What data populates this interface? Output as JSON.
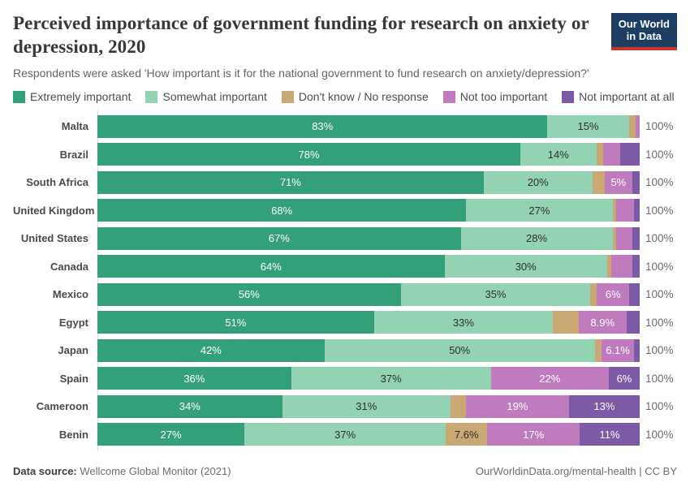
{
  "header": {
    "title": "Perceived importance of government funding for research on anxiety or depression, 2020",
    "subtitle": "Respondents were asked 'How important is it for the national government to fund research on anxiety/depression?'",
    "logo": {
      "line1": "Our World",
      "line2": "in Data",
      "bg": "#1d3d63",
      "accent": "#c7342a"
    }
  },
  "chart_data": {
    "type": "bar",
    "orientation": "horizontal",
    "stacked": true,
    "unit": "%",
    "axis_max_label": "100%",
    "categories": [
      {
        "label": "Extremely important",
        "color": "#34a07a",
        "label_color": "#ffffff"
      },
      {
        "label": "Somewhat important",
        "color": "#93d3b4",
        "label_color": "#2d2d2d"
      },
      {
        "label": "Don't know / No response",
        "color": "#c9a873",
        "label_color": "#2d2d2d"
      },
      {
        "label": "Not too important",
        "color": "#bf7bbd",
        "label_color": "#ffffff"
      },
      {
        "label": "Not important at all",
        "color": "#7d5aa6",
        "label_color": "#ffffff"
      }
    ],
    "rows": [
      {
        "country": "Malta",
        "values": [
          83,
          15,
          1.2,
          0.8,
          0
        ],
        "labels": [
          "83%",
          "15%",
          "",
          "",
          ""
        ],
        "total": "100%"
      },
      {
        "country": "Brazil",
        "values": [
          78,
          14,
          1.3,
          3.1,
          3.6
        ],
        "labels": [
          "78%",
          "14%",
          "",
          "",
          ""
        ],
        "total": "100%"
      },
      {
        "country": "South Africa",
        "values": [
          71,
          20,
          2.3,
          5,
          1.4
        ],
        "labels": [
          "71%",
          "20%",
          "",
          "5%",
          ""
        ],
        "total": "100%"
      },
      {
        "country": "United Kingdom",
        "values": [
          68,
          27,
          0.7,
          3.2,
          1.1
        ],
        "labels": [
          "68%",
          "27%",
          "",
          "",
          ""
        ],
        "total": "100%"
      },
      {
        "country": "United States",
        "values": [
          67,
          28,
          0.7,
          3,
          1.3
        ],
        "labels": [
          "67%",
          "28%",
          "",
          "",
          ""
        ],
        "total": "100%"
      },
      {
        "country": "Canada",
        "values": [
          64,
          30,
          0.8,
          3.9,
          1.3
        ],
        "labels": [
          "64%",
          "30%",
          "",
          "",
          ""
        ],
        "total": "100%"
      },
      {
        "country": "Mexico",
        "values": [
          56,
          35,
          1.2,
          6,
          1.9
        ],
        "labels": [
          "56%",
          "35%",
          "",
          "6%",
          ""
        ],
        "total": "100%"
      },
      {
        "country": "Egypt",
        "values": [
          51,
          33,
          4.7,
          8.9,
          2.4
        ],
        "labels": [
          "51%",
          "33%",
          "",
          "8.9%",
          ""
        ],
        "total": "100%"
      },
      {
        "country": "Japan",
        "values": [
          42,
          50,
          1.2,
          6.1,
          1
        ],
        "labels": [
          "42%",
          "50%",
          "",
          "6.1%",
          ""
        ],
        "total": "100%"
      },
      {
        "country": "Spain",
        "values": [
          35.8,
          36.9,
          0,
          21.8,
          5.7
        ],
        "labels": [
          "36%",
          "37%",
          "",
          "22%",
          "6%"
        ],
        "total": "100%"
      },
      {
        "country": "Cameroon",
        "values": [
          34,
          31,
          2.8,
          19,
          13
        ],
        "labels": [
          "34%",
          "31%",
          "",
          "19%",
          "13%"
        ],
        "total": "100%"
      },
      {
        "country": "Benin",
        "values": [
          27,
          37,
          7.6,
          17,
          11
        ],
        "labels": [
          "27%",
          "37%",
          "7.6%",
          "17%",
          "11%"
        ],
        "total": "100%"
      }
    ]
  },
  "footer": {
    "source_label": "Data source:",
    "source_value": " Wellcome Global Monitor (2021)",
    "rights": "OurWorldinData.org/mental-health | CC BY"
  }
}
